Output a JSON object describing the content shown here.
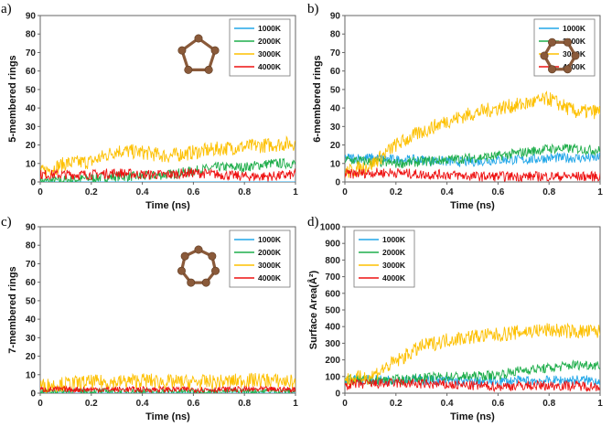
{
  "colors": {
    "1000K": "#22a7e8",
    "2000K": "#1fae4b",
    "3000K": "#fdc000",
    "4000K": "#ee1111",
    "molecule": "#8a5a3a"
  },
  "chart_data": [
    {
      "type": "line",
      "panel_label": "a)",
      "xlabel": "Time (ns)",
      "ylabel": "5-membered rings",
      "xlim": [
        0,
        1
      ],
      "ylim": [
        0,
        90
      ],
      "xticks": [
        "0",
        "0.2",
        "0.4",
        "0.6",
        "0.8",
        "1"
      ],
      "yticks": [
        "0",
        "10",
        "20",
        "30",
        "40",
        "50",
        "60",
        "70",
        "80",
        "90"
      ],
      "legend": "top-right",
      "icon": "pentagon-ring",
      "x": [
        0,
        0.1,
        0.2,
        0.3,
        0.4,
        0.5,
        0.6,
        0.7,
        0.8,
        0.9,
        1
      ],
      "series": [
        {
          "name": "1000K",
          "values": [
            0,
            0,
            0,
            0,
            0,
            0,
            0,
            0,
            0,
            0,
            0
          ]
        },
        {
          "name": "2000K",
          "values": [
            0,
            1,
            2,
            3,
            3,
            4,
            6,
            8,
            8,
            10,
            10
          ]
        },
        {
          "name": "3000K",
          "values": [
            5,
            10,
            11,
            17,
            16,
            14,
            16,
            18,
            19,
            20,
            21
          ]
        },
        {
          "name": "4000K",
          "values": [
            4,
            4,
            4,
            5,
            4,
            4,
            5,
            4,
            3,
            3,
            4
          ]
        }
      ]
    },
    {
      "type": "line",
      "panel_label": "b)",
      "xlabel": "Time (ns)",
      "ylabel": "6-membered rings",
      "xlim": [
        0,
        1
      ],
      "ylim": [
        0,
        90
      ],
      "xticks": [
        "0",
        "0.2",
        "0.4",
        "0.6",
        "0.8",
        "1"
      ],
      "yticks": [
        "0",
        "10",
        "20",
        "30",
        "40",
        "50",
        "60",
        "70",
        "80",
        "90"
      ],
      "legend": "top-right",
      "icon": "hexagon-ring",
      "x": [
        0,
        0.1,
        0.2,
        0.3,
        0.4,
        0.5,
        0.6,
        0.7,
        0.8,
        0.9,
        1
      ],
      "series": [
        {
          "name": "1000K",
          "values": [
            13,
            13,
            12,
            12,
            11,
            11,
            12,
            12,
            13,
            13,
            13
          ]
        },
        {
          "name": "2000K",
          "values": [
            12,
            11,
            10,
            11,
            12,
            13,
            14,
            16,
            18,
            18,
            17
          ]
        },
        {
          "name": "3000K",
          "values": [
            5,
            9,
            20,
            27,
            33,
            37,
            40,
            42,
            45,
            38,
            38
          ]
        },
        {
          "name": "4000K",
          "values": [
            4,
            5,
            5,
            4,
            4,
            3,
            3,
            3,
            3,
            3,
            3
          ]
        }
      ]
    },
    {
      "type": "line",
      "panel_label": "c)",
      "xlabel": "Time (ns)",
      "ylabel": "7-membered rings",
      "xlim": [
        0,
        1
      ],
      "ylim": [
        0,
        90
      ],
      "xticks": [
        "0",
        "0.2",
        "0.4",
        "0.6",
        "0.8",
        "1"
      ],
      "yticks": [
        "0",
        "10",
        "20",
        "30",
        "40",
        "50",
        "60",
        "70",
        "80",
        "90"
      ],
      "legend": "top-right",
      "icon": "heptagon-ring",
      "x": [
        0,
        0.1,
        0.2,
        0.3,
        0.4,
        0.5,
        0.6,
        0.7,
        0.8,
        0.9,
        1
      ],
      "series": [
        {
          "name": "1000K",
          "values": [
            0,
            0,
            0,
            0,
            0,
            0,
            0,
            0,
            0,
            0,
            0
          ]
        },
        {
          "name": "2000K",
          "values": [
            1,
            1,
            1,
            1,
            1,
            1,
            1,
            1,
            1,
            1,
            1
          ]
        },
        {
          "name": "3000K",
          "values": [
            4,
            5,
            6,
            6,
            7,
            6,
            6,
            6,
            7,
            7,
            6
          ]
        },
        {
          "name": "4000K",
          "values": [
            2,
            2,
            2,
            2,
            2,
            2,
            2,
            2,
            2,
            2,
            2
          ]
        }
      ]
    },
    {
      "type": "line",
      "panel_label": "d)",
      "xlabel": "Time (ns)",
      "ylabel": "Surface Area(Å²)",
      "xlim": [
        0,
        1
      ],
      "ylim": [
        0,
        1000
      ],
      "xticks": [
        "0",
        "0.2",
        "0.4",
        "0.6",
        "0.8",
        "1"
      ],
      "yticks": [
        "0",
        "100",
        "200",
        "300",
        "400",
        "500",
        "600",
        "700",
        "800",
        "900",
        "1000"
      ],
      "legend": "top-left",
      "icon": "",
      "x": [
        0,
        0.1,
        0.2,
        0.3,
        0.4,
        0.5,
        0.6,
        0.7,
        0.8,
        0.9,
        1
      ],
      "series": [
        {
          "name": "1000K",
          "values": [
            80,
            80,
            80,
            80,
            75,
            70,
            70,
            75,
            75,
            80,
            75
          ]
        },
        {
          "name": "2000K",
          "values": [
            80,
            75,
            80,
            90,
            100,
            100,
            110,
            140,
            150,
            170,
            170
          ]
        },
        {
          "name": "3000K",
          "values": [
            80,
            100,
            190,
            280,
            320,
            340,
            350,
            370,
            380,
            370,
            370
          ]
        },
        {
          "name": "4000K",
          "values": [
            50,
            55,
            60,
            55,
            50,
            45,
            40,
            45,
            45,
            45,
            40
          ]
        }
      ]
    }
  ]
}
